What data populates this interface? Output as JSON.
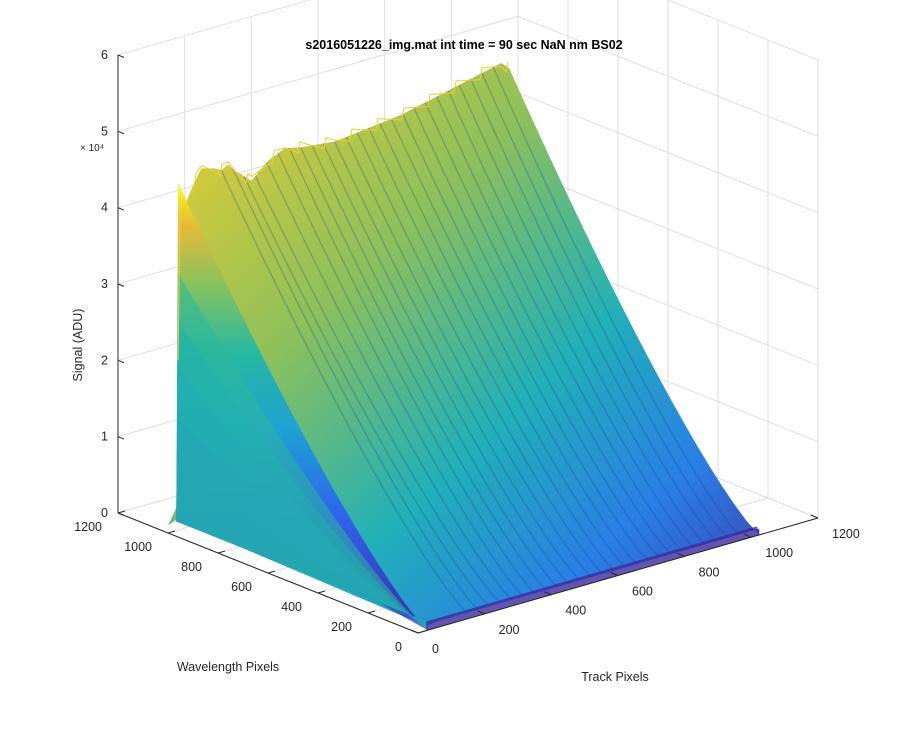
{
  "chart_data": {
    "type": "surface",
    "title": "s2016051226_img.mat int time = 90 sec  NaN nm BS02",
    "xlabel": "Track Pixels",
    "ylabel": "Wavelength Pixels",
    "zlabel": "Signal (ADU)",
    "z_multiplier": "× 10⁴",
    "x_ticks": [
      "0",
      "200",
      "400",
      "600",
      "800",
      "1000",
      "1200"
    ],
    "y_ticks": [
      "0",
      "200",
      "400",
      "600",
      "800",
      "1000",
      "1200"
    ],
    "z_ticks": [
      "0",
      "1",
      "2",
      "3",
      "4",
      "5",
      "6"
    ],
    "xlim": [
      0,
      1200
    ],
    "ylim": [
      0,
      1200
    ],
    "zlim": [
      0,
      60000
    ],
    "grid": true,
    "colormap": [
      "#3e26a8",
      "#2f5ef0",
      "#1aa0d8",
      "#21b8a4",
      "#8ac35c",
      "#e6b83a",
      "#f9fb0e"
    ],
    "ridge_profile": {
      "x": [
        0,
        25,
        35,
        80,
        100,
        140,
        160,
        180,
        200,
        250,
        300,
        350,
        400,
        500,
        600,
        700,
        800,
        900,
        1000,
        1024
      ],
      "z_at_wavelength_1000": [
        1000,
        3000,
        41000,
        45000,
        46500,
        46000,
        45500,
        46000,
        45000,
        43000,
        45000,
        46000,
        45500,
        45000,
        45500,
        46000,
        47000,
        48000,
        49000,
        48000
      ]
    }
  }
}
